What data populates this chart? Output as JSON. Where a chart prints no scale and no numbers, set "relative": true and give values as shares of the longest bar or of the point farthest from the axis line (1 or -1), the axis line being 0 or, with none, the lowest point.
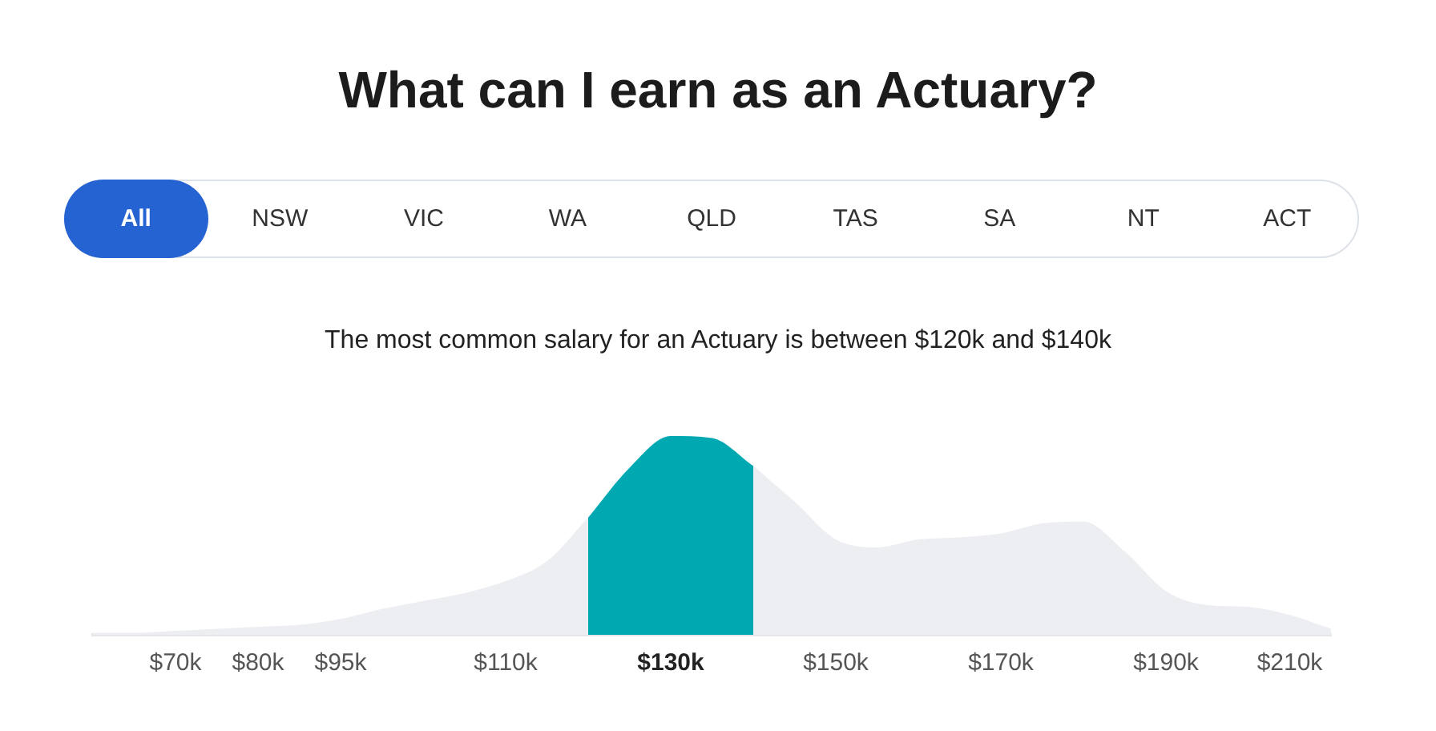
{
  "chart_data": {
    "type": "area",
    "title": "What can I earn as an Actuary?",
    "subtitle": "The most common salary for an Actuary is between $120k and $140k",
    "annotations": [
      "All",
      "NSW",
      "VIC",
      "WA",
      "QLD",
      "TAS",
      "SA",
      "NT",
      "ACT"
    ],
    "categories": [
      null,
      null,
      "$70k",
      null,
      "$80k",
      null,
      "$95k",
      null,
      null,
      null,
      "$110k",
      null,
      null,
      null,
      "$130k",
      null,
      null,
      null,
      "$150k",
      null,
      null,
      null,
      "$170k",
      null,
      null,
      null,
      "$190k",
      null,
      null,
      "$210k",
      null
    ],
    "relative": true,
    "series": [
      {
        "color": "#eceef2",
        "values": [
          0.01,
          0.01,
          0.02,
          0.03,
          0.04,
          0.05,
          0.08,
          0.13,
          0.17,
          0.21,
          0.27,
          0.37,
          0.59,
          null,
          null,
          null,
          0.85,
          0.67,
          0.48,
          0.44,
          0.48,
          0.49,
          0.51,
          0.56,
          0.57,
          0.42,
          0.22,
          0.15,
          0.14,
          0.1,
          0.03
        ]
      },
      {
        "color": "#00a9b1",
        "values": [
          null,
          null,
          null,
          null,
          null,
          null,
          null,
          null,
          null,
          null,
          null,
          null,
          0.59,
          0.84,
          1,
          0.99,
          0.85,
          null,
          null,
          null,
          null,
          null,
          null,
          null,
          null,
          null,
          null,
          null,
          null,
          null,
          null
        ]
      }
    ]
  }
}
